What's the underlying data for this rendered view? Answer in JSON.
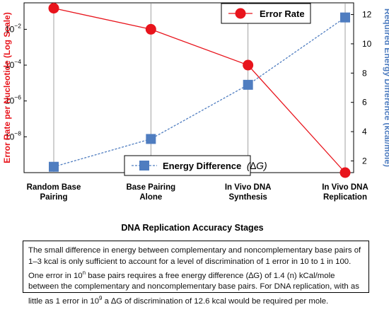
{
  "chart_data": {
    "type": "line",
    "categories": [
      [
        "Random Base",
        "Pairing"
      ],
      [
        "Base Pairing",
        "Alone"
      ],
      [
        "In Vivo DNA",
        "Synthesis"
      ],
      [
        "In Vivo DNA",
        "Replication"
      ]
    ],
    "x_title": "DNA Replication Accuracy Stages",
    "left_axis": {
      "label": "Error Rate per Nucleotide (Log Scale)",
      "scale": "log",
      "ylim": [
        1e-10,
        0.3
      ],
      "ticks": [
        {
          "v": 0.01,
          "b": "10",
          "e": "−2"
        },
        {
          "v": 0.0001,
          "b": "10",
          "e": "−4"
        },
        {
          "v": 1e-06,
          "b": "10",
          "e": "−6"
        },
        {
          "v": 1e-08,
          "b": "10",
          "e": "−8"
        }
      ],
      "color": "#e8141c"
    },
    "right_axis": {
      "label": "Required Energy Difference (kcal/mole)",
      "scale": "linear",
      "ylim": [
        1.2,
        12.8
      ],
      "ticks": [
        2,
        4,
        6,
        8,
        10,
        12
      ],
      "color": "#4f7dc0"
    },
    "series": [
      {
        "name": "Error Rate",
        "axis": "left",
        "values": [
          0.15,
          0.01,
          0.0001,
          1e-10
        ],
        "color": "#e8141c",
        "marker": "circle",
        "line": "solid"
      },
      {
        "name": "Energy Difference",
        "name_suffix": "(∆G)",
        "axis": "right",
        "values": [
          1.6,
          3.5,
          7.2,
          11.8
        ],
        "color": "#4f7dc0",
        "marker": "square",
        "line": "dashed"
      }
    ],
    "grid": "vertical",
    "legend": [
      "top-right",
      "bottom-center"
    ]
  },
  "caption": {
    "parts": [
      {
        "t": "The small difference in energy between complementary and noncomplementary base pairs of 1–3 kcal is only sufficient to account for a level of discrimination of 1 error in 10 to 1 in 100.  One error in 10"
      },
      {
        "t": "n",
        "sup": true
      },
      {
        "t": " base pairs requires a free energy difference (∆G) of 1.4 (n) kCal/mole between the complementary and noncomplementary base pairs. For DNA replication, with as little as 1 error in 10"
      },
      {
        "t": "9",
        "sup": true
      },
      {
        "t": " a ∆G of discrimination of 12.6 kcal would be required per mole."
      }
    ]
  }
}
